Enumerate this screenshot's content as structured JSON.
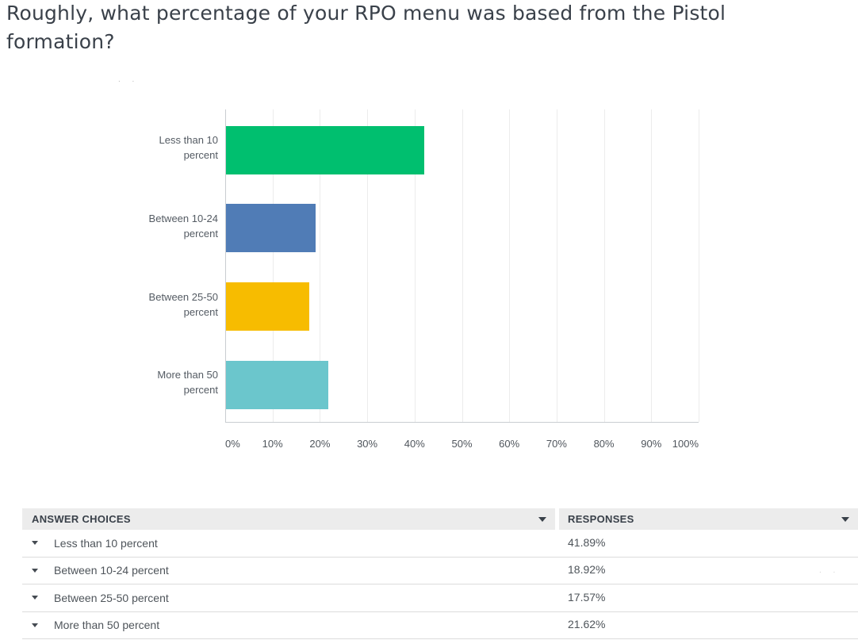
{
  "question": {
    "title": "Roughly, what percentage of your RPO menu was based from the Pistol formation?",
    "title_lines": [
      "Roughly, what percentage of your RPO menu was based from the Pistol",
      "formation?"
    ]
  },
  "chart_data": {
    "type": "bar",
    "orientation": "horizontal",
    "title": "",
    "categories": [
      "Less than 10 percent",
      "Between 10-24 percent",
      "Between 25-50 percent",
      "More than 50 percent"
    ],
    "category_label_lines": [
      [
        "Less than 10",
        "percent"
      ],
      [
        "Between 10-24",
        "percent"
      ],
      [
        "Between 25-50",
        "percent"
      ],
      [
        "More than 50",
        "percent"
      ]
    ],
    "values": [
      41.89,
      18.92,
      17.57,
      21.62
    ],
    "unit": "%",
    "bar_colors": [
      "#00BF6F",
      "#507CB6",
      "#F7BC00",
      "#6BC6CC"
    ],
    "xlabel": "",
    "ylabel": "",
    "xlim": [
      0,
      100
    ],
    "x_ticks": [
      0,
      10,
      20,
      30,
      40,
      50,
      60,
      70,
      80,
      90,
      100
    ],
    "x_tick_labels": [
      "0%",
      "10%",
      "20%",
      "30%",
      "40%",
      "50%",
      "60%",
      "70%",
      "80%",
      "90%",
      "100%"
    ],
    "grid": "vertical gridlines every 10%",
    "legend": "none"
  },
  "table": {
    "columns": [
      {
        "label": "ANSWER CHOICES",
        "sort_icon": "triangle-down"
      },
      {
        "label": "RESPONSES",
        "sort_icon": "triangle-down"
      }
    ],
    "rows": [
      {
        "expand_icon": "triangle-down",
        "choice": "Less than 10 percent",
        "response": "41.89%"
      },
      {
        "expand_icon": "triangle-down",
        "choice": "Between 10-24 percent",
        "response": "18.92%"
      },
      {
        "expand_icon": "triangle-down",
        "choice": "Between 25-50 percent",
        "response": "17.57%"
      },
      {
        "expand_icon": "triangle-down",
        "choice": "More than 50 percent",
        "response": "21.62%"
      }
    ]
  },
  "artifacts": {
    "dots_top": ". .",
    "dots_right": ". ."
  },
  "colors": {
    "title_text": "#3A414A",
    "label_text": "#545B63",
    "grid_line": "#ECECEC",
    "axis_line": "#C9CDD1",
    "table_header_bg": "#ECECEC",
    "table_header_text": "#394049",
    "table_row_text": "#4E545A",
    "table_row_border": "#DCDCDC",
    "bar_green": "#00BF6F",
    "bar_blue": "#507CB6",
    "bar_yellow": "#F7BC00",
    "bar_teal": "#6BC6CC"
  }
}
